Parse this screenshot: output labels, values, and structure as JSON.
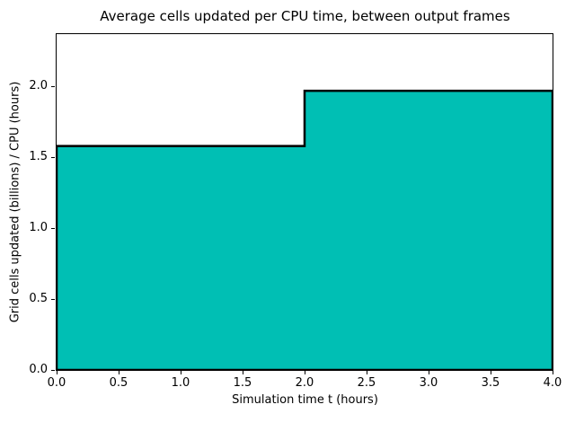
{
  "chart_data": {
    "type": "bar",
    "subtype": "stepfilled-histogram",
    "title": "Average cells updated per CPU time, between output frames",
    "xlabel": "Simulation time t (hours)",
    "ylabel": "Grid cells updated (billions) / CPU (hours)",
    "xlim": [
      0.0,
      4.0
    ],
    "ylim": [
      0.0,
      2.37
    ],
    "xticks": [
      0.0,
      0.5,
      1.0,
      1.5,
      2.0,
      2.5,
      3.0,
      3.5,
      4.0
    ],
    "yticks": [
      0.0,
      0.5,
      1.0,
      1.5,
      2.0
    ],
    "tick_decimals": 1,
    "grid": false,
    "legend": null,
    "bars": [
      {
        "x_start": 0.0,
        "x_end": 2.0,
        "value": 1.58
      },
      {
        "x_start": 2.0,
        "x_end": 4.0,
        "value": 1.97
      }
    ],
    "bar_fill_color": "#00bfb4",
    "bar_edge_color": "#000000",
    "bar_edge_width": 2.5,
    "axis_color": "#000000",
    "background_color": "#ffffff"
  }
}
